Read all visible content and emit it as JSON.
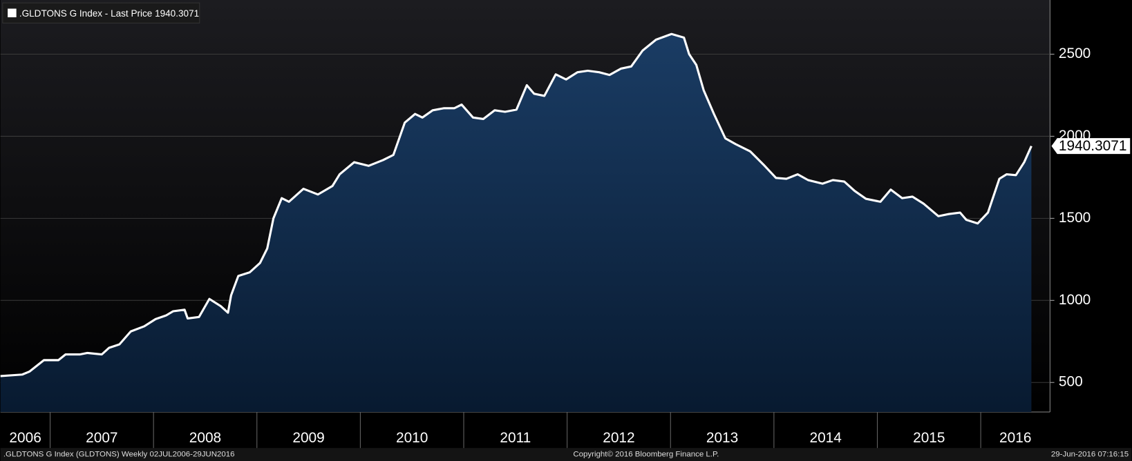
{
  "chart_data": {
    "type": "area",
    "legend": {
      "label": ".GLDTONS G Index - Last Price",
      "position": "top-left"
    },
    "x": [
      2006.52,
      2006.73,
      2006.8,
      2006.94,
      2007.08,
      2007.15,
      2007.29,
      2007.36,
      2007.5,
      2007.57,
      2007.67,
      2007.78,
      2007.91,
      2008.02,
      2008.12,
      2008.19,
      2008.3,
      2008.33,
      2008.44,
      2008.54,
      2008.65,
      2008.72,
      2008.75,
      2008.82,
      2008.93,
      2009.03,
      2009.1,
      2009.16,
      2009.24,
      2009.31,
      2009.45,
      2009.59,
      2009.73,
      2009.8,
      2009.94,
      2010.08,
      2010.22,
      2010.32,
      2010.43,
      2010.53,
      2010.6,
      2010.7,
      2010.81,
      2010.91,
      2010.98,
      2011.09,
      2011.19,
      2011.3,
      2011.4,
      2011.51,
      2011.61,
      2011.68,
      2011.78,
      2011.89,
      2011.99,
      2012.1,
      2012.2,
      2012.31,
      2012.41,
      2012.52,
      2012.62,
      2012.73,
      2012.86,
      2013.01,
      2013.13,
      2013.18,
      2013.25,
      2013.32,
      2013.42,
      2013.53,
      2013.63,
      2013.77,
      2013.91,
      2014.02,
      2014.12,
      2014.23,
      2014.33,
      2014.47,
      2014.57,
      2014.68,
      2014.78,
      2014.89,
      2015.03,
      2015.13,
      2015.24,
      2015.34,
      2015.45,
      2015.59,
      2015.69,
      2015.8,
      2015.86,
      2015.97,
      2016.07,
      2016.18,
      2016.25,
      2016.34,
      2016.42,
      2016.49
    ],
    "series": [
      {
        "name": ".GLDTONS G Index - Last Price",
        "color": "#ffffff",
        "fill": "#15355a",
        "values": [
          539,
          548,
          566,
          636,
          636,
          671,
          671,
          680,
          671,
          711,
          732,
          811,
          842,
          886,
          908,
          934,
          943,
          890,
          899,
          1009,
          965,
          925,
          1031,
          1149,
          1171,
          1228,
          1316,
          1500,
          1623,
          1601,
          1680,
          1645,
          1697,
          1768,
          1842,
          1820,
          1855,
          1886,
          2083,
          2136,
          2114,
          2158,
          2171,
          2171,
          2193,
          2114,
          2105,
          2158,
          2149,
          2162,
          2311,
          2259,
          2246,
          2377,
          2346,
          2390,
          2399,
          2390,
          2373,
          2412,
          2425,
          2522,
          2588,
          2623,
          2601,
          2500,
          2434,
          2281,
          2136,
          1987,
          1952,
          1908,
          1820,
          1746,
          1741,
          1768,
          1733,
          1711,
          1733,
          1724,
          1667,
          1619,
          1601,
          1675,
          1623,
          1632,
          1588,
          1513,
          1526,
          1535,
          1491,
          1469,
          1535,
          1741,
          1768,
          1763,
          1842,
          1940.3071
        ]
      }
    ],
    "xlim": [
      2006.52,
      2016.67
    ],
    "xticks": [
      2006,
      2007,
      2008,
      2009,
      2010,
      2011,
      2012,
      2013,
      2014,
      2015,
      2016
    ],
    "ylim": [
      320,
      2830
    ],
    "yticks": [
      500,
      1000,
      1500,
      2000,
      2500
    ],
    "grid": true
  },
  "footer": {
    "left": ".GLDTONS G Index (GLDTONS)  Weekly 02JUL2006-29JUN2016",
    "center": "Copyright© 2016 Bloomberg Finance L.P.",
    "right": "29-Jun-2016 07:16:15"
  }
}
